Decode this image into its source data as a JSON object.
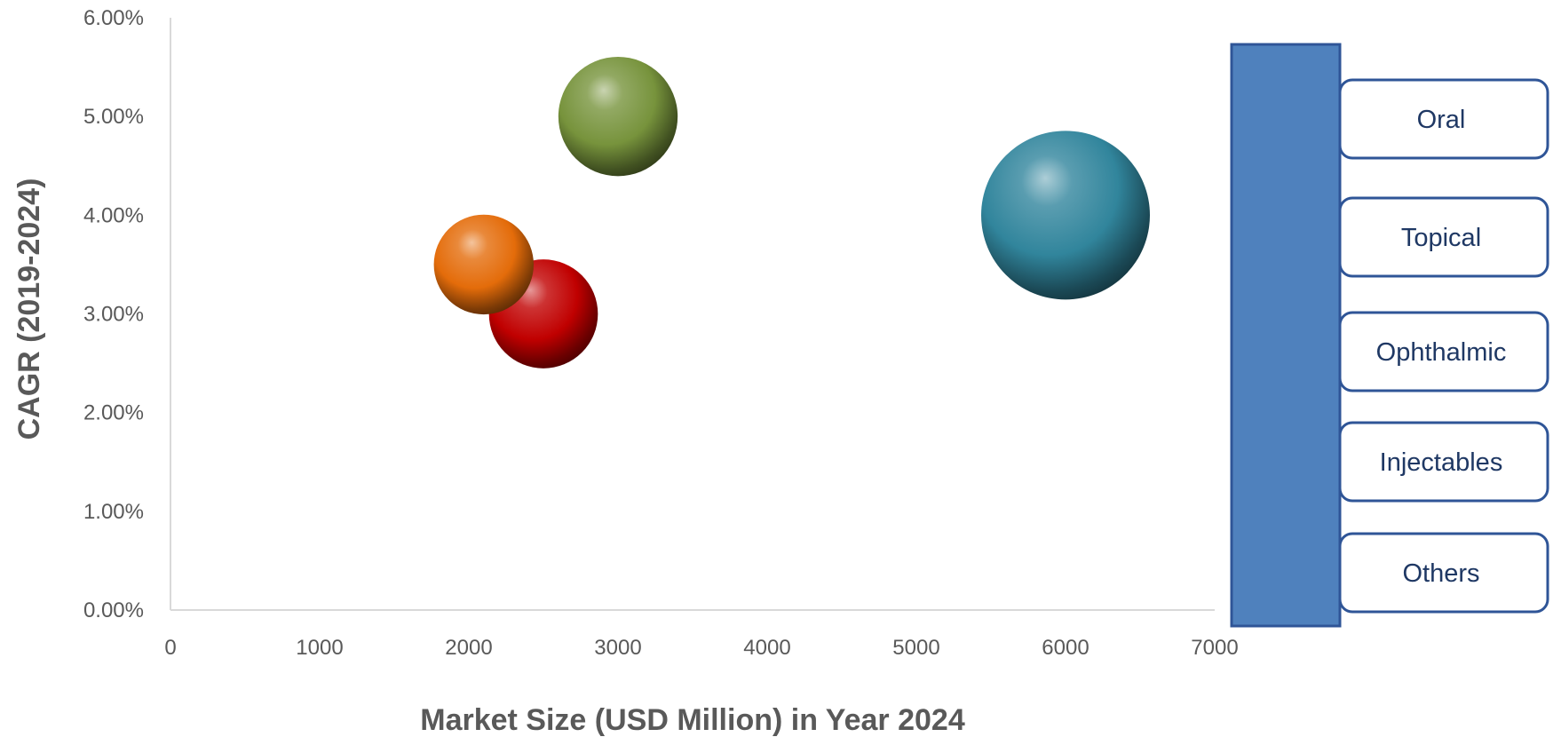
{
  "chart_data": {
    "type": "scatter",
    "subtype": "bubble",
    "xlabel": "Market Size (USD Million) in Year 2024",
    "ylabel": "CAGR (2019-2024)",
    "xlim": [
      0,
      7000
    ],
    "ylim": [
      0.0,
      0.06
    ],
    "x_ticks": [
      "0",
      "1000",
      "2000",
      "3000",
      "4000",
      "5000",
      "6000",
      "7000"
    ],
    "y_ticks": [
      "0.00%",
      "1.00%",
      "2.00%",
      "3.00%",
      "4.00%",
      "5.00%",
      "6.00%"
    ],
    "grid": false,
    "legend_position": "right",
    "legend_items": [
      "Oral",
      "Topical",
      "Ophthalmic",
      "Injectables",
      "Others"
    ],
    "legend_bar_color": "#4f81bd",
    "points": [
      {
        "x": 6000,
        "y": 0.04,
        "size": 6000,
        "color": "#31859c"
      },
      {
        "x": 3000,
        "y": 0.05,
        "size": 3000,
        "color": "#77933c"
      },
      {
        "x": 2500,
        "y": 0.03,
        "size": 2500,
        "color": "#c00000"
      },
      {
        "x": 2100,
        "y": 0.035,
        "size": 2100,
        "color": "#e46c0a"
      }
    ]
  }
}
